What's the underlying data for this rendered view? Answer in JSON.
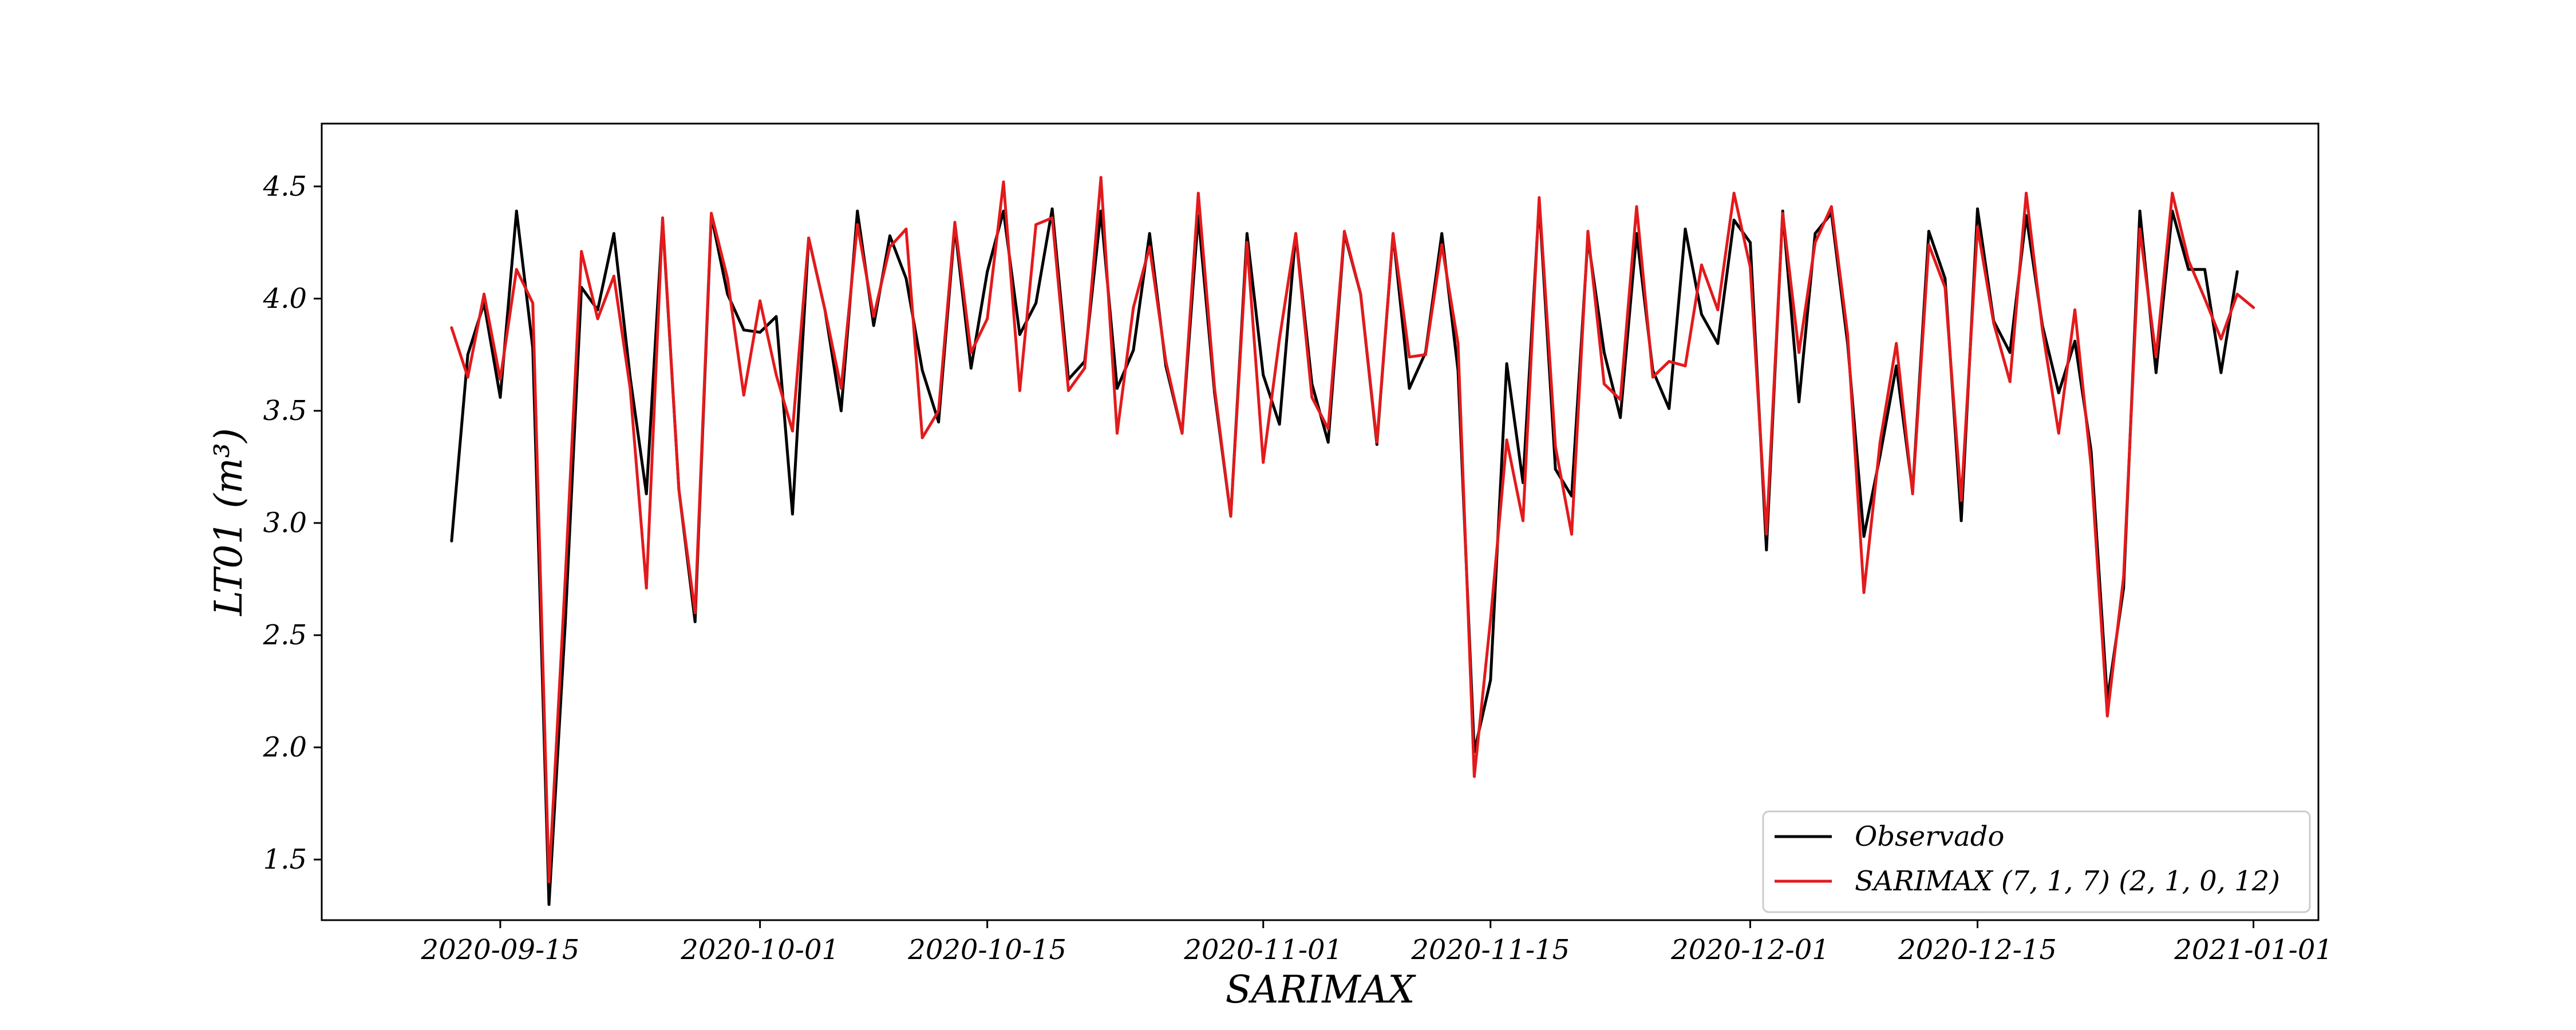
{
  "chart_data": {
    "type": "line",
    "xlabel": "SARIMAX",
    "ylabel": "LT01 (m³)",
    "xlim": [
      "2020-09-04",
      "2021-01-05"
    ],
    "ylim": [
      1.23,
      4.78
    ],
    "x_ticks": [
      "2020-09-15",
      "2020-10-01",
      "2020-10-15",
      "2020-11-01",
      "2020-11-15",
      "2020-12-01",
      "2020-12-15",
      "2021-01-01"
    ],
    "y_ticks": [
      "1.5",
      "2.0",
      "2.5",
      "3.0",
      "3.5",
      "4.0",
      "4.5"
    ],
    "grid": false,
    "legend_position": "bottom-right",
    "series": [
      {
        "name": "Observado",
        "color": "#000000",
        "x_start": "2020-09-12",
        "values": [
          2.92,
          3.75,
          3.98,
          3.56,
          4.39,
          3.78,
          1.3,
          2.55,
          4.05,
          3.95,
          4.29,
          3.65,
          3.13,
          4.35,
          3.15,
          2.56,
          4.37,
          4.02,
          3.86,
          3.85,
          3.92,
          3.04,
          4.27,
          3.95,
          3.5,
          4.39,
          3.88,
          4.28,
          4.09,
          3.68,
          3.45,
          4.32,
          3.69,
          4.12,
          4.39,
          3.84,
          3.98,
          4.4,
          3.64,
          3.72,
          4.39,
          3.6,
          3.77,
          4.29,
          3.7,
          3.4,
          4.37,
          3.58,
          3.03,
          4.29,
          3.66,
          3.44,
          4.29,
          3.62,
          3.36,
          4.29,
          4.02,
          3.35,
          4.29,
          3.6,
          3.76,
          4.29,
          3.68,
          1.98,
          2.3,
          3.71,
          3.18,
          4.43,
          3.24,
          3.12,
          4.27,
          3.76,
          3.47,
          4.29,
          3.68,
          3.51,
          4.31,
          3.93,
          3.8,
          4.35,
          4.25,
          2.88,
          4.39,
          3.54,
          4.29,
          4.38,
          3.8,
          2.94,
          3.3,
          3.7,
          3.14,
          4.3,
          4.09,
          3.01,
          4.4,
          3.9,
          3.76,
          4.37,
          3.88,
          3.58,
          3.81,
          3.32,
          2.21,
          2.71,
          4.39,
          3.67,
          4.39,
          4.13,
          4.13,
          3.67,
          4.12
        ]
      },
      {
        "name": "SARIMAX (7, 1, 7) (2, 1, 0, 12)",
        "color": "#e31a1c",
        "x_start": "2020-09-12",
        "values": [
          3.87,
          3.65,
          4.02,
          3.64,
          4.13,
          3.98,
          1.4,
          2.75,
          4.21,
          3.91,
          4.1,
          3.6,
          2.71,
          4.36,
          3.15,
          2.6,
          4.38,
          4.09,
          3.57,
          3.99,
          3.66,
          3.41,
          4.27,
          3.95,
          3.6,
          4.33,
          3.92,
          4.23,
          4.31,
          3.38,
          3.5,
          4.34,
          3.76,
          3.91,
          4.52,
          3.59,
          4.33,
          4.36,
          3.59,
          3.69,
          4.54,
          3.4,
          3.96,
          4.23,
          3.72,
          3.4,
          4.47,
          3.6,
          3.03,
          4.25,
          3.27,
          3.82,
          4.29,
          3.56,
          3.42,
          4.3,
          4.02,
          3.36,
          4.29,
          3.74,
          3.75,
          4.24,
          3.8,
          1.87,
          2.57,
          3.37,
          3.01,
          4.45,
          3.34,
          2.95,
          4.3,
          3.62,
          3.55,
          4.41,
          3.65,
          3.72,
          3.7,
          4.15,
          3.95,
          4.47,
          4.14,
          2.95,
          4.38,
          3.76,
          4.25,
          4.41,
          3.84,
          2.69,
          3.36,
          3.8,
          3.13,
          4.24,
          4.05,
          3.1,
          4.32,
          3.89,
          3.63,
          4.47,
          3.86,
          3.4,
          3.95,
          3.25,
          2.14,
          2.76,
          4.31,
          3.74,
          4.47,
          4.17,
          4.0,
          3.82,
          4.02,
          3.96
        ]
      }
    ]
  }
}
